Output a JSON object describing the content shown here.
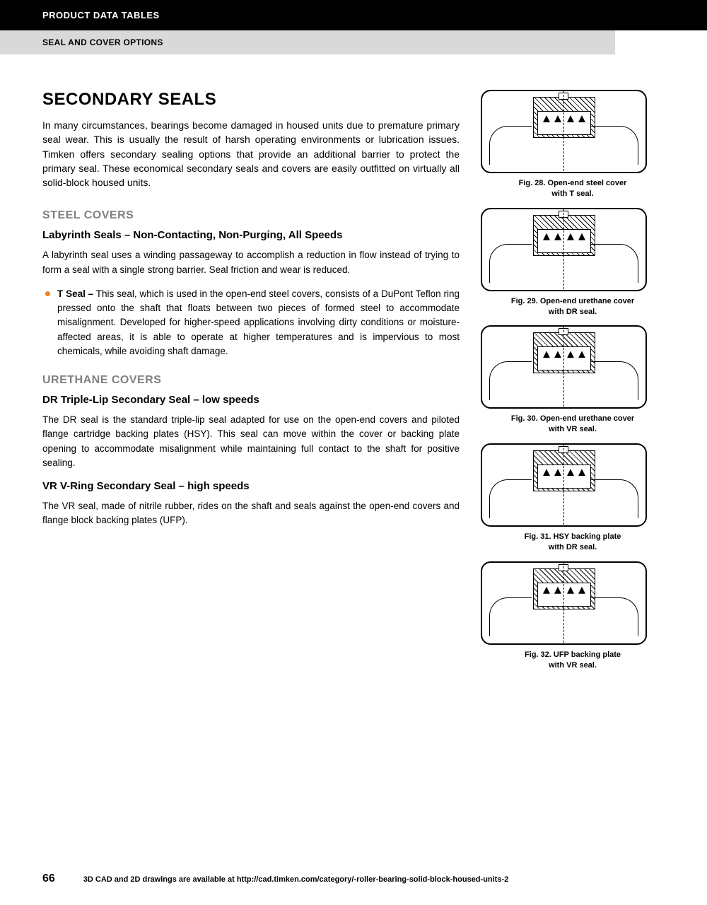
{
  "header": {
    "black": "PRODUCT DATA TABLES",
    "gray": "SEAL AND COVER OPTIONS"
  },
  "title": "SECONDARY SEALS",
  "intro": "In many circumstances, bearings become damaged in housed units due to premature primary seal wear. This is usually the result of harsh operating environments or lubrication issues. Timken offers secondary sealing options that provide an additional barrier to protect the primary seal. These economical secondary seals and covers are easily outfitted on virtually all solid-block housed units.",
  "sections": [
    {
      "h2": "STEEL COVERS",
      "h3": "Labyrinth Seals – Non-Contacting, Non-Purging, All Speeds",
      "body": "A labyrinth seal uses a winding passageway to accomplish a reduction in flow instead of trying to form a seal with a single strong barrier. Seal friction and wear is reduced.",
      "bullet_label": "T Seal –",
      "bullet_body": " This seal, which is used in the open-end steel covers, consists of a DuPont Teflon ring pressed onto the shaft that floats between two pieces of formed steel to accommodate misalignment. Developed for higher-speed applications involving dirty conditions or moisture-affected areas, it is able to operate at higher temperatures and is impervious to most chemicals, while avoiding shaft damage."
    },
    {
      "h2": "URETHANE COVERS",
      "h3": "DR Triple-Lip Secondary Seal – low speeds",
      "body": "The DR seal is the standard triple-lip seal adapted for use on the open-end covers and piloted flange cartridge backing plates (HSY). This seal can move within the cover or backing plate opening to accommodate misalignment while maintaining full contact to the shaft for positive sealing."
    },
    {
      "h3": "VR V-Ring Secondary Seal – high speeds",
      "body": "The VR seal, made of nitrile rubber, rides on the shaft and seals against the open-end covers and flange block backing plates (UFP)."
    }
  ],
  "figures": [
    {
      "line1": "Fig. 28. Open-end steel cover",
      "line2": "with T seal."
    },
    {
      "line1": "Fig. 29. Open-end urethane cover",
      "line2": "with DR seal."
    },
    {
      "line1": "Fig. 30. Open-end urethane cover",
      "line2": "with VR seal."
    },
    {
      "line1": "Fig. 31. HSY backing plate",
      "line2": "with DR seal."
    },
    {
      "line1": "Fig. 32. UFP backing plate",
      "line2": "with VR seal."
    }
  ],
  "footer": {
    "page": "66",
    "text": "3D CAD and 2D drawings are available at http://cad.timken.com/category/-roller-bearing-solid-block-housed-units-2"
  },
  "colors": {
    "accent": "#f58220",
    "gray_heading": "#808080",
    "header_gray_bg": "#d9d9d9"
  }
}
